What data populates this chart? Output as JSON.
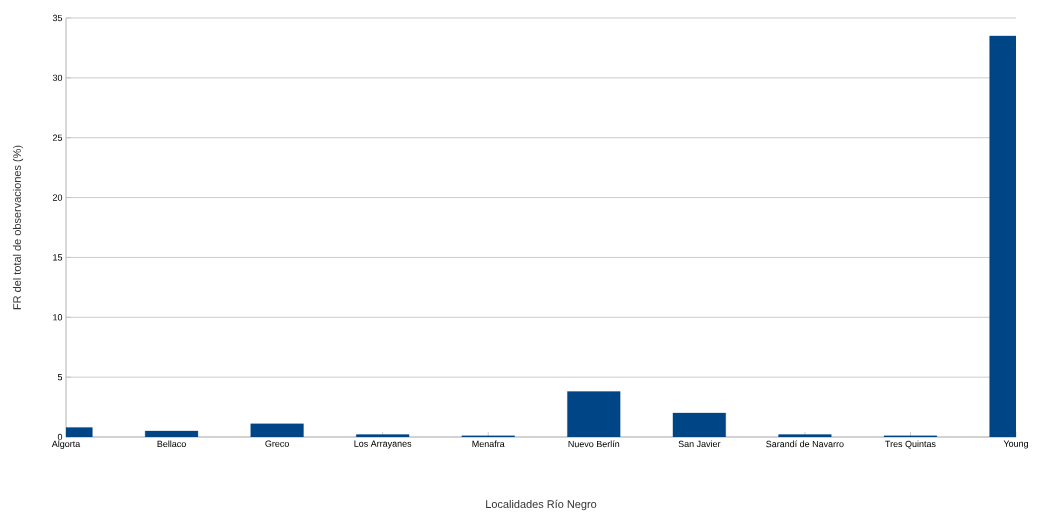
{
  "chart_data": {
    "type": "bar",
    "xlabel": "Localidades Río Negro",
    "ylabel": "FR del total de observaciones (%)",
    "categories": [
      "Algorta",
      "Bellaco",
      "Greco",
      "Los Arrayanes",
      "Menafra",
      "Nuevo Berlín",
      "San Javier",
      "Sarandí de Navarro",
      "Tres Quintas",
      "Young"
    ],
    "values": [
      0.8,
      0.5,
      1.1,
      0.2,
      0.1,
      3.8,
      2.0,
      0.2,
      0.1,
      33.5
    ],
    "color": "#004586",
    "ylim": [
      0,
      35
    ],
    "yticks": [
      0,
      5,
      10,
      15,
      20,
      25,
      30,
      35
    ],
    "grid": "y"
  }
}
